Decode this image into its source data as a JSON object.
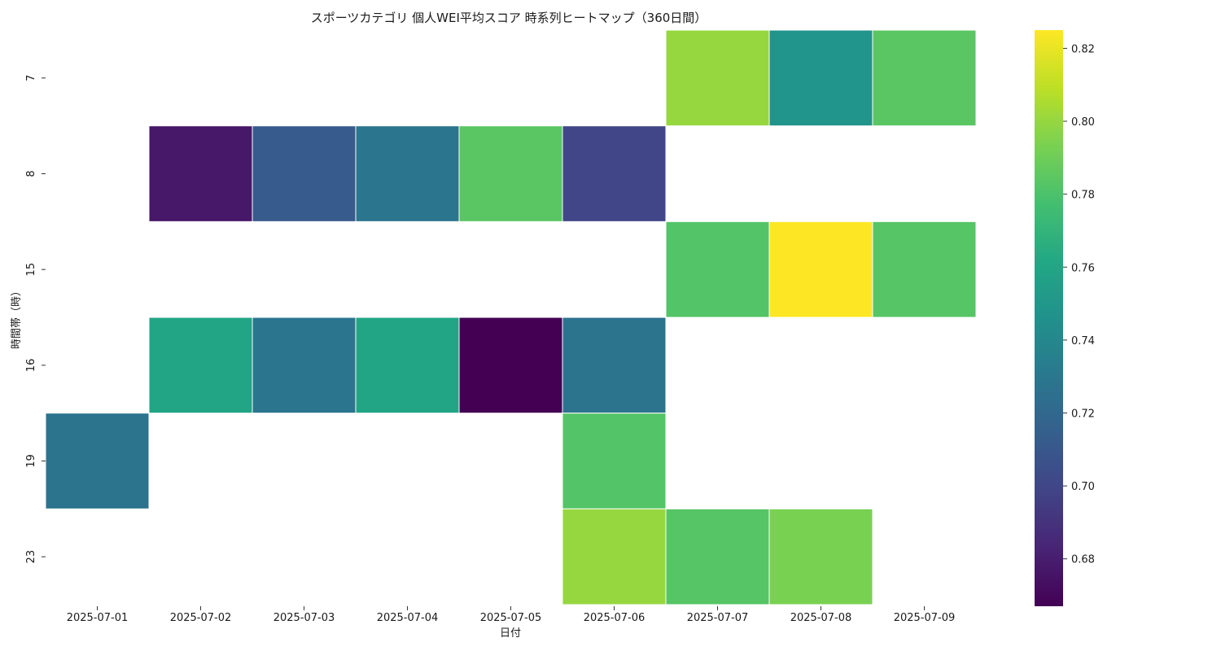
{
  "chart_data": {
    "type": "heatmap",
    "title": "スポーツカテゴリ 個人WEI平均スコア 時系列ヒートマップ（360日間）",
    "xlabel": "日付",
    "ylabel": "時間帯（時）",
    "x": [
      "2025-07-01",
      "2025-07-02",
      "2025-07-03",
      "2025-07-04",
      "2025-07-05",
      "2025-07-06",
      "2025-07-07",
      "2025-07-08",
      "2025-07-09"
    ],
    "y": [
      "7",
      "8",
      "15",
      "16",
      "19",
      "23"
    ],
    "values": [
      [
        null,
        null,
        null,
        null,
        null,
        null,
        0.8,
        0.748,
        0.784
      ],
      [
        null,
        0.677,
        0.712,
        0.728,
        0.784,
        0.7,
        null,
        null,
        null
      ],
      [
        null,
        null,
        null,
        null,
        null,
        null,
        0.782,
        0.825,
        0.783
      ],
      [
        null,
        0.76,
        0.728,
        0.76,
        0.667,
        0.727,
        null,
        null,
        null
      ],
      [
        0.727,
        null,
        null,
        null,
        null,
        0.782,
        null,
        null,
        null
      ],
      [
        null,
        null,
        null,
        null,
        null,
        0.8,
        0.783,
        0.793,
        null
      ]
    ],
    "colorscale": "viridis",
    "vmin": 0.667,
    "vmax": 0.825,
    "colorbar_ticks": [
      "0.68",
      "0.70",
      "0.72",
      "0.74",
      "0.76",
      "0.78",
      "0.80",
      "0.82"
    ],
    "grid": false,
    "colorbar": "right"
  }
}
